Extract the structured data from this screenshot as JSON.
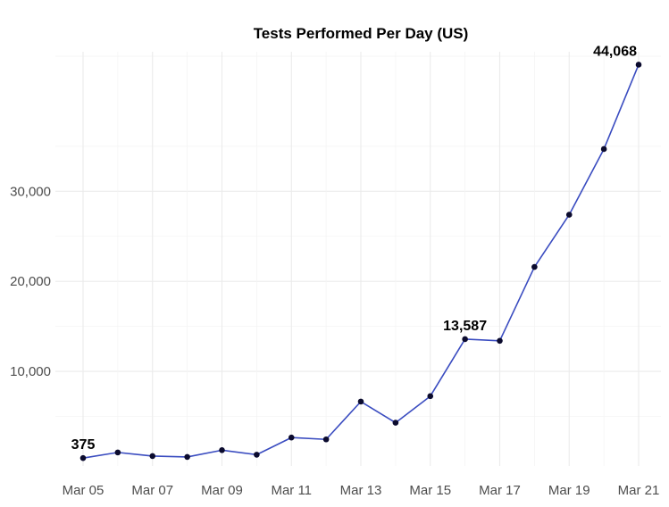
{
  "chart_data": {
    "type": "line",
    "title": "Tests Performed Per Day (US)",
    "xlabel": "",
    "ylabel": "",
    "x": [
      "Mar 05",
      "Mar 06",
      "Mar 07",
      "Mar 08",
      "Mar 09",
      "Mar 10",
      "Mar 11",
      "Mar 12",
      "Mar 13",
      "Mar 14",
      "Mar 15",
      "Mar 16",
      "Mar 17",
      "Mar 18",
      "Mar 19",
      "Mar 20",
      "Mar 21"
    ],
    "x_tick_labels": [
      "Mar 05",
      "Mar 07",
      "Mar 09",
      "Mar 11",
      "Mar 13",
      "Mar 15",
      "Mar 17",
      "Mar 19",
      "Mar 21"
    ],
    "series": [
      {
        "values": [
          375,
          1000,
          600,
          500,
          1250,
          750,
          2650,
          2450,
          6650,
          4300,
          7250,
          13587,
          13400,
          21600,
          27400,
          34700,
          44068
        ]
      }
    ],
    "y_ticks": [
      10000,
      20000,
      30000
    ],
    "y_tick_labels": [
      "10,000",
      "20,000",
      "30,000"
    ],
    "ylim": [
      -500,
      45500
    ],
    "annotations": [
      {
        "index": 0,
        "text": "375"
      },
      {
        "index": 11,
        "text": "13,587"
      },
      {
        "index": 16,
        "text": "44,068"
      }
    ],
    "grid": true,
    "legend": "none",
    "colors": {
      "line": "#3a4cc0",
      "point": "#0b0b2e"
    }
  }
}
